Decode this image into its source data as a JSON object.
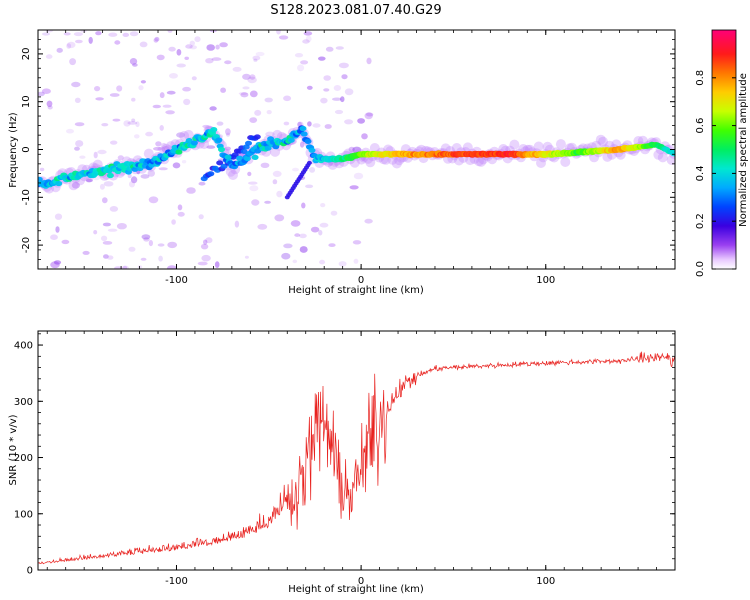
{
  "figure_title": "S128.2023.081.07.40.G29",
  "chart_data": [
    {
      "type": "heatmap",
      "xlabel": "Height of straight line (km)",
      "ylabel": "Frequency (Hz)",
      "xlim": [
        -175,
        170
      ],
      "ylim": [
        -25,
        25
      ],
      "x_ticks": [
        -100,
        0,
        100
      ],
      "x_tick_labels": [
        "-100",
        "0",
        "100"
      ],
      "y_ticks": [
        -20,
        -10,
        0,
        10,
        20
      ],
      "y_tick_labels": [
        "-20",
        "-10",
        "0",
        "10",
        "20"
      ],
      "colorbar": {
        "label": "Normalized spectral amplitude",
        "range": [
          0,
          1
        ],
        "ticks": [
          0.0,
          0.2,
          0.4,
          0.6,
          0.8
        ],
        "tick_labels": [
          "0.0",
          "0.2",
          "0.4",
          "0.6",
          "0.8"
        ]
      },
      "ridge": {
        "x": [
          -170,
          -150,
          -130,
          -110,
          -100,
          -90,
          -80,
          -70,
          -60,
          -50,
          -40,
          -32,
          -25,
          -10,
          0,
          20,
          50,
          80,
          100,
          120,
          140,
          160,
          170
        ],
        "y": [
          -7,
          -5,
          -4,
          -2,
          0,
          2,
          4,
          -4,
          -1,
          1,
          2,
          4,
          -2,
          -2,
          -1,
          -1,
          -1,
          -1,
          -1,
          -0.5,
          0,
          1,
          -1
        ],
        "amplitude": [
          0.35,
          0.4,
          0.4,
          0.35,
          0.35,
          0.4,
          0.4,
          0.3,
          0.35,
          0.4,
          0.4,
          0.3,
          0.35,
          0.45,
          0.6,
          0.75,
          0.85,
          0.9,
          0.7,
          0.55,
          0.8,
          0.5,
          0.4
        ]
      },
      "grid": false
    },
    {
      "type": "line",
      "xlabel": "Height of straight line (km)",
      "ylabel": "SNR (10 * v/v)",
      "xlim": [
        -175,
        170
      ],
      "ylim": [
        0,
        425
      ],
      "x_ticks": [
        -100,
        0,
        100
      ],
      "x_tick_labels": [
        "-100",
        "0",
        "100"
      ],
      "y_ticks": [
        0,
        100,
        200,
        300,
        400
      ],
      "y_tick_labels": [
        "0",
        "100",
        "200",
        "300",
        "400"
      ],
      "color": "#e8221f",
      "series": [
        {
          "x": [
            -175,
            -160,
            -140,
            -120,
            -100,
            -80,
            -60,
            -50,
            -40,
            -30,
            -25,
            -20,
            -15,
            -10,
            -5,
            0,
            5,
            10,
            15,
            20,
            30,
            40,
            60,
            80,
            100,
            120,
            140,
            160,
            170
          ],
          "y": [
            10,
            15,
            22,
            28,
            35,
            45,
            60,
            75,
            110,
            180,
            240,
            270,
            200,
            150,
            130,
            180,
            230,
            260,
            290,
            320,
            345,
            358,
            362,
            365,
            368,
            370,
            372,
            378,
            375
          ]
        }
      ],
      "grid": false
    }
  ]
}
